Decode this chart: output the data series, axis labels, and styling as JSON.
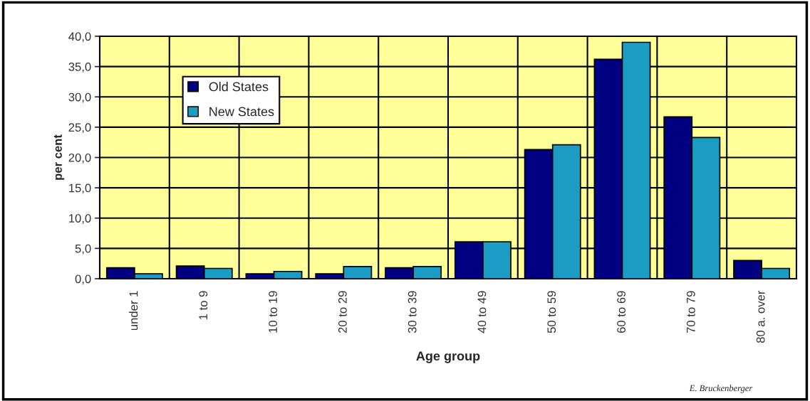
{
  "chart_data": {
    "type": "bar",
    "xlabel": "Age group",
    "ylabel": "per cent",
    "categories": [
      "under 1",
      "1 to 9",
      "10 to 19",
      "20 to 29",
      "30 to 39",
      "40 to 49",
      "50 to 59",
      "60 to 69",
      "70 to 79",
      "80 a. over"
    ],
    "series": [
      {
        "name": "Old States",
        "color": "#000080",
        "values": [
          1.8,
          2.1,
          0.8,
          0.8,
          1.8,
          6.1,
          21.3,
          36.2,
          26.7,
          3.0
        ]
      },
      {
        "name": "New States",
        "color": "#1a9cc4",
        "values": [
          0.8,
          1.7,
          1.2,
          2.0,
          2.0,
          6.1,
          22.1,
          39.0,
          23.3,
          1.7
        ]
      }
    ],
    "ylim": [
      0,
      40
    ],
    "yticks": [
      {
        "value": 0,
        "label": "0,0"
      },
      {
        "value": 5,
        "label": "5,0"
      },
      {
        "value": 10,
        "label": "10,0"
      },
      {
        "value": 15,
        "label": "15,0"
      },
      {
        "value": 20,
        "label": "20,0"
      },
      {
        "value": 25,
        "label": "25,0"
      },
      {
        "value": 30,
        "label": "30,0"
      },
      {
        "value": 35,
        "label": "35,0"
      },
      {
        "value": 40,
        "label": "40,0"
      }
    ],
    "grid": "y",
    "legend": "top left",
    "annotations": [
      "E. Bruckenberger"
    ]
  }
}
